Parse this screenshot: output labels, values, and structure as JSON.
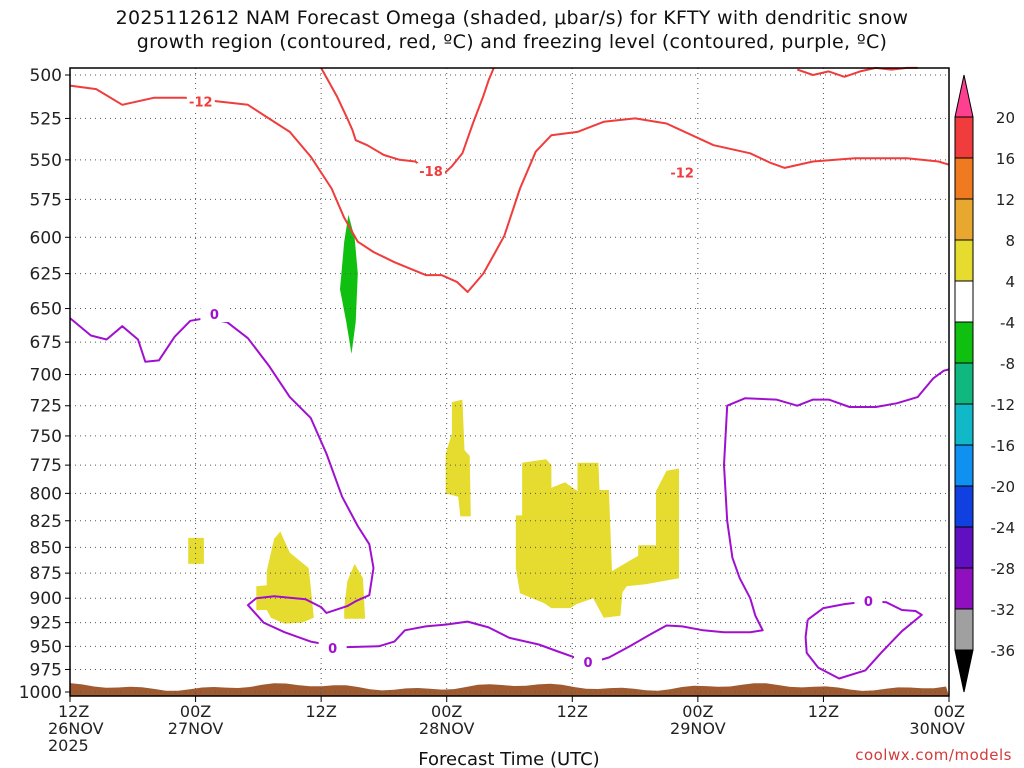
{
  "title_lines": [
    "2025112612 NAM Forecast Omega (shaded, μbar/s) for KFTY with dendritic snow",
    "growth region (contoured, red, ºC) and freezing level (contoured, purple, ºC)"
  ],
  "credit": "coolwx.com/models",
  "chart_data": {
    "type": "time-height cross-section",
    "xlabel": "Forecast Time (UTC)",
    "x_ticks": [
      {
        "hour": 0,
        "label": [
          "12Z",
          "26NOV",
          "2025"
        ]
      },
      {
        "hour": 12,
        "label": [
          "00Z",
          "27NOV"
        ]
      },
      {
        "hour": 24,
        "label": [
          "12Z"
        ]
      },
      {
        "hour": 36,
        "label": [
          "00Z",
          "28NOV"
        ]
      },
      {
        "hour": 48,
        "label": [
          "12Z"
        ]
      },
      {
        "hour": 60,
        "label": [
          "00Z",
          "29NOV"
        ]
      },
      {
        "hour": 72,
        "label": [
          "12Z"
        ]
      },
      {
        "hour": 84,
        "label": [
          "00Z",
          "30NOV"
        ]
      }
    ],
    "xlim": [
      0,
      84
    ],
    "ylabel": "",
    "y_ticks": [
      500,
      525,
      550,
      575,
      600,
      625,
      650,
      675,
      700,
      725,
      750,
      775,
      800,
      825,
      850,
      875,
      900,
      925,
      950,
      975,
      1000
    ],
    "ylim_hPa": [
      500,
      1000
    ],
    "y_scale": "log pressure",
    "grid": true,
    "colorbar": {
      "labels": [
        "20",
        "16",
        "12",
        "8",
        "4",
        "-4",
        "-8",
        "-12",
        "-16",
        "-20",
        "-24",
        "-28",
        "-32",
        "-36"
      ],
      "colors": [
        "#ff4090",
        "#f03c3c",
        "#f07a20",
        "#e8a830",
        "#e6dc30",
        "#ffffff",
        "#10c010",
        "#10b880",
        "#10b8c8",
        "#1090f0",
        "#1040e0",
        "#6010c0",
        "#9010c0",
        "#a0a0a0",
        "#000000"
      ]
    },
    "omega_regions": [
      {
        "color": "#e6dc30",
        "value_range": [
          4,
          8
        ],
        "points": [
          [
            11.3,
            841
          ],
          [
            12.8,
            841
          ],
          [
            12.8,
            866
          ],
          [
            11.3,
            866
          ]
        ]
      },
      {
        "color": "#e6dc30",
        "value_range": [
          4,
          8
        ],
        "points": [
          [
            17.8,
            888
          ],
          [
            18.8,
            887
          ],
          [
            18.8,
            873
          ],
          [
            19.5,
            842
          ],
          [
            20.1,
            835
          ],
          [
            21.0,
            855
          ],
          [
            22.8,
            870
          ],
          [
            23.0,
            888
          ],
          [
            23.3,
            920
          ],
          [
            22.2,
            925
          ],
          [
            20.5,
            926
          ],
          [
            19.2,
            920
          ],
          [
            18.8,
            912
          ],
          [
            17.8,
            912
          ]
        ]
      },
      {
        "color": "#e6dc30",
        "value_range": [
          4,
          8
        ],
        "points": [
          [
            26.2,
            910
          ],
          [
            26.5,
            883
          ],
          [
            27.2,
            866
          ],
          [
            28.0,
            880
          ],
          [
            28.2,
            921
          ],
          [
            26.2,
            921
          ]
        ]
      },
      {
        "color": "#e6dc30",
        "value_range": [
          4,
          8
        ],
        "points": [
          [
            36.5,
            722
          ],
          [
            37.5,
            720
          ],
          [
            37.7,
            762
          ],
          [
            38.2,
            767
          ],
          [
            38.3,
            821
          ],
          [
            37.3,
            821
          ],
          [
            37.1,
            803
          ],
          [
            35.9,
            800
          ],
          [
            35.9,
            765
          ],
          [
            36.5,
            748
          ]
        ]
      },
      {
        "color": "#e6dc30",
        "value_range": [
          4,
          8
        ],
        "points": [
          [
            42.6,
            820
          ],
          [
            43.2,
            820
          ],
          [
            43.2,
            773
          ],
          [
            45.5,
            770
          ],
          [
            46.0,
            775
          ],
          [
            46.0,
            795
          ],
          [
            47.3,
            790
          ],
          [
            48.5,
            798
          ],
          [
            48.5,
            773
          ],
          [
            50.5,
            773
          ],
          [
            50.6,
            797
          ],
          [
            51.5,
            797
          ],
          [
            51.8,
            873
          ],
          [
            54.3,
            858
          ],
          [
            54.3,
            848
          ],
          [
            56.0,
            848
          ],
          [
            56.0,
            798
          ],
          [
            57.0,
            780
          ],
          [
            58.2,
            778
          ],
          [
            58.2,
            880
          ],
          [
            55.0,
            886
          ],
          [
            53.2,
            888
          ],
          [
            52.8,
            894
          ],
          [
            52.6,
            918
          ],
          [
            51.0,
            920
          ],
          [
            50.0,
            900
          ],
          [
            48.4,
            906
          ],
          [
            47.8,
            910
          ],
          [
            46.0,
            910
          ],
          [
            45.3,
            905
          ],
          [
            43.0,
            895
          ],
          [
            42.6,
            870
          ]
        ]
      },
      {
        "color": "#10c010",
        "value_range": [
          -12,
          -8
        ],
        "points": [
          [
            26.6,
            585
          ],
          [
            27.2,
            600
          ],
          [
            27.5,
            625
          ],
          [
            27.3,
            660
          ],
          [
            26.9,
            684
          ],
          [
            26.4,
            660
          ],
          [
            25.8,
            636
          ],
          [
            26.2,
            603
          ]
        ]
      }
    ],
    "contours": [
      {
        "label": "-12",
        "color": "#f03c3c",
        "field": "temperature_C",
        "label_positions": [
          [
            12.5,
            515
          ],
          [
            58.5,
            558
          ]
        ],
        "points": [
          [
            0,
            506
          ],
          [
            2.5,
            508
          ],
          [
            5,
            517
          ],
          [
            8,
            513
          ],
          [
            11,
            513
          ],
          [
            14,
            515
          ],
          [
            17,
            517
          ],
          [
            19,
            525
          ],
          [
            21,
            533
          ],
          [
            23,
            548
          ],
          [
            25,
            568
          ],
          [
            26.2,
            587
          ],
          [
            27.5,
            603
          ],
          [
            29,
            610
          ],
          [
            31,
            617
          ],
          [
            34,
            626
          ],
          [
            35.5,
            626
          ],
          [
            37,
            631
          ],
          [
            38,
            638
          ],
          [
            39.5,
            625
          ],
          [
            40.5,
            612
          ],
          [
            41.5,
            599
          ],
          [
            43,
            568
          ],
          [
            44.5,
            545
          ],
          [
            46,
            535
          ],
          [
            48.5,
            533
          ],
          [
            51,
            527
          ],
          [
            54,
            525
          ],
          [
            57,
            528
          ],
          [
            61.5,
            541
          ],
          [
            65,
            546
          ],
          [
            67,
            552
          ],
          [
            68.3,
            555
          ],
          [
            71,
            551
          ],
          [
            75,
            549
          ],
          [
            80,
            549
          ],
          [
            83,
            551
          ],
          [
            84,
            553
          ]
        ]
      },
      {
        "label": "-18",
        "color": "#f03c3c",
        "field": "temperature_C",
        "label_positions": [
          [
            34.5,
            557
          ]
        ],
        "points": [
          [
            24,
            496
          ],
          [
            25.5,
            512
          ],
          [
            26.5,
            525
          ],
          [
            27,
            532
          ],
          [
            27.3,
            538
          ],
          [
            28.4,
            541
          ],
          [
            30,
            547
          ],
          [
            31.5,
            550
          ],
          [
            33,
            551
          ],
          [
            34,
            556
          ],
          [
            35.5,
            560
          ],
          [
            36.5,
            554
          ],
          [
            37.5,
            546
          ],
          [
            38.5,
            528
          ],
          [
            39.5,
            512
          ],
          [
            40,
            503
          ],
          [
            40.5,
            496
          ]
        ]
      },
      {
        "label": "",
        "color": "#f03c3c",
        "field": "temperature_C",
        "label_positions": [],
        "points": [
          [
            69.5,
            497
          ],
          [
            71,
            500
          ],
          [
            72.5,
            498
          ],
          [
            74,
            501
          ],
          [
            75.5,
            498
          ],
          [
            77,
            496
          ],
          [
            78.5,
            497
          ],
          [
            80,
            496
          ],
          [
            81,
            496
          ]
        ]
      },
      {
        "label": "0",
        "color": "#a010d0",
        "field": "temperature_C",
        "label_positions": [
          [
            13.8,
            654
          ],
          [
            25.1,
            952
          ],
          [
            49.5,
            967
          ]
        ],
        "points": [
          [
            0,
            657
          ],
          [
            2,
            670
          ],
          [
            3.5,
            673
          ],
          [
            5,
            663
          ],
          [
            6.5,
            673
          ],
          [
            7.2,
            690
          ],
          [
            8.5,
            689
          ],
          [
            10,
            671
          ],
          [
            11.5,
            659
          ],
          [
            13,
            657
          ],
          [
            15,
            660
          ],
          [
            17,
            672
          ],
          [
            19,
            693
          ],
          [
            21,
            718
          ],
          [
            23,
            735
          ],
          [
            24.5,
            765
          ],
          [
            26,
            803
          ],
          [
            27.5,
            830
          ],
          [
            28.6,
            847
          ],
          [
            29,
            870
          ],
          [
            28.6,
            897
          ],
          [
            27.3,
            903
          ],
          [
            26.5,
            908
          ],
          [
            24.5,
            915
          ],
          [
            24,
            909
          ],
          [
            22.5,
            901
          ],
          [
            19.5,
            898
          ],
          [
            17.8,
            900
          ],
          [
            17,
            907
          ],
          [
            18.5,
            925
          ],
          [
            20.5,
            935
          ],
          [
            23,
            945
          ],
          [
            26,
            951
          ],
          [
            29.5,
            950
          ],
          [
            31,
            945
          ],
          [
            32,
            933
          ],
          [
            34,
            929
          ],
          [
            36,
            927
          ],
          [
            38,
            924
          ],
          [
            40,
            930
          ],
          [
            42,
            941
          ],
          [
            44.8,
            948
          ],
          [
            46.5,
            955
          ],
          [
            48.5,
            963
          ],
          [
            50,
            967
          ],
          [
            51.5,
            962
          ],
          [
            53.5,
            950
          ],
          [
            55.5,
            937
          ],
          [
            57,
            928
          ],
          [
            58.5,
            929
          ],
          [
            60.5,
            933
          ],
          [
            62.5,
            935
          ],
          [
            65,
            935
          ],
          [
            66.2,
            933
          ],
          [
            65.5,
            918
          ],
          [
            65,
            900
          ],
          [
            64,
            880
          ],
          [
            63.3,
            860
          ],
          [
            62.8,
            825
          ],
          [
            62.5,
            775
          ],
          [
            62.8,
            725
          ],
          [
            64.5,
            719
          ],
          [
            67.5,
            720
          ],
          [
            69.5,
            725
          ],
          [
            71,
            720
          ],
          [
            72.5,
            720
          ],
          [
            74.5,
            726
          ],
          [
            77,
            726
          ],
          [
            79,
            723
          ],
          [
            81,
            718
          ],
          [
            82.5,
            703
          ],
          [
            83.5,
            697
          ],
          [
            84,
            696
          ]
        ]
      },
      {
        "label": "0",
        "color": "#a010d0",
        "field": "temperature_C",
        "label_positions": [
          [
            76.3,
            903
          ]
        ],
        "points": [
          [
            70.5,
            922
          ],
          [
            72,
            910
          ],
          [
            74,
            906
          ],
          [
            76.3,
            903
          ],
          [
            78,
            904
          ],
          [
            79.5,
            912
          ],
          [
            80.8,
            913
          ],
          [
            81.4,
            917
          ],
          [
            79.5,
            934
          ],
          [
            77.5,
            957
          ],
          [
            76,
            976
          ],
          [
            73.5,
            985
          ],
          [
            71.5,
            973
          ],
          [
            70.4,
            957
          ],
          [
            70.3,
            940
          ],
          [
            70.5,
            922
          ]
        ]
      }
    ],
    "terrain_color": "#a05a30"
  }
}
